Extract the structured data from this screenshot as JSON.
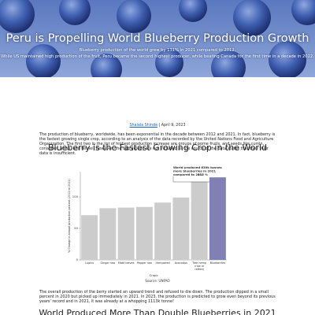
{
  "header": {
    "title": "Peru is Propelling World Blueberry Production Growth",
    "subtitle": [
      "Blueberry production of the world grew by 131% in 2021 compared to 2012.",
      "While US maintained high production of the fruit, Peru became the second highest producer, while beating Canada for the first time in a decade in 2022."
    ]
  },
  "byline": {
    "author": "Shalala Shinde",
    "date": "April 9, 2023"
  },
  "paragraphs": [
    "The production of blueberry, worldwide, has been exponential in the decade between 2012 and 2021. In fact, blueberry is the fastest growing single crop, according to an analysis of the data recorded by the United Nations Food and Agriculture Organization. The first two in the list of highest production increase are groups of pome fruits, and seeds like cumin, coriander, anise, and fennel. However, the two groups are not included as the source of the data states that they their data is insufficient.",
    "The overall production of the berry started an upward trend and refused to die down. The production dipped in a small percent in 2020 but picked up immediately in 2021. In 2023, the production is predicted to grow even beyond its previous years' record and in 2021, it was already at a whopping 1113k tonne!"
  ],
  "chart_data": {
    "type": "bar",
    "title": "Blueberry is the Fastest Growing Crop in the World",
    "x_label": "Crops",
    "y_label": "% Change in annual production percent (2012 to 2021)",
    "source": "Source: UNFAO",
    "annotation": "World produced 630k tonnes more blueberries in 2021 compared to 2012",
    "categories": [
      "Lupins",
      "Ginger raw",
      "Maté leaves",
      "Pepper raw",
      "Hempseed",
      "Avocados",
      "Tree hemp (raw or retted)",
      "Blueberries"
    ],
    "values": [
      71,
      82,
      83,
      84,
      91,
      99,
      124,
      131
    ],
    "value_labels": [
      null,
      null,
      null,
      null,
      null,
      null,
      null,
      "131 %"
    ],
    "colors": [
      "#cccccc",
      "#cccccc",
      "#cccccc",
      "#cccccc",
      "#cccccc",
      "#cccccc",
      "#cccccc",
      "#7f80b4"
    ],
    "ylim": [
      0,
      140
    ],
    "yticks": [
      0,
      50,
      100
    ]
  },
  "next_heading": "World Produced More Than Double Blueberries in 2021"
}
